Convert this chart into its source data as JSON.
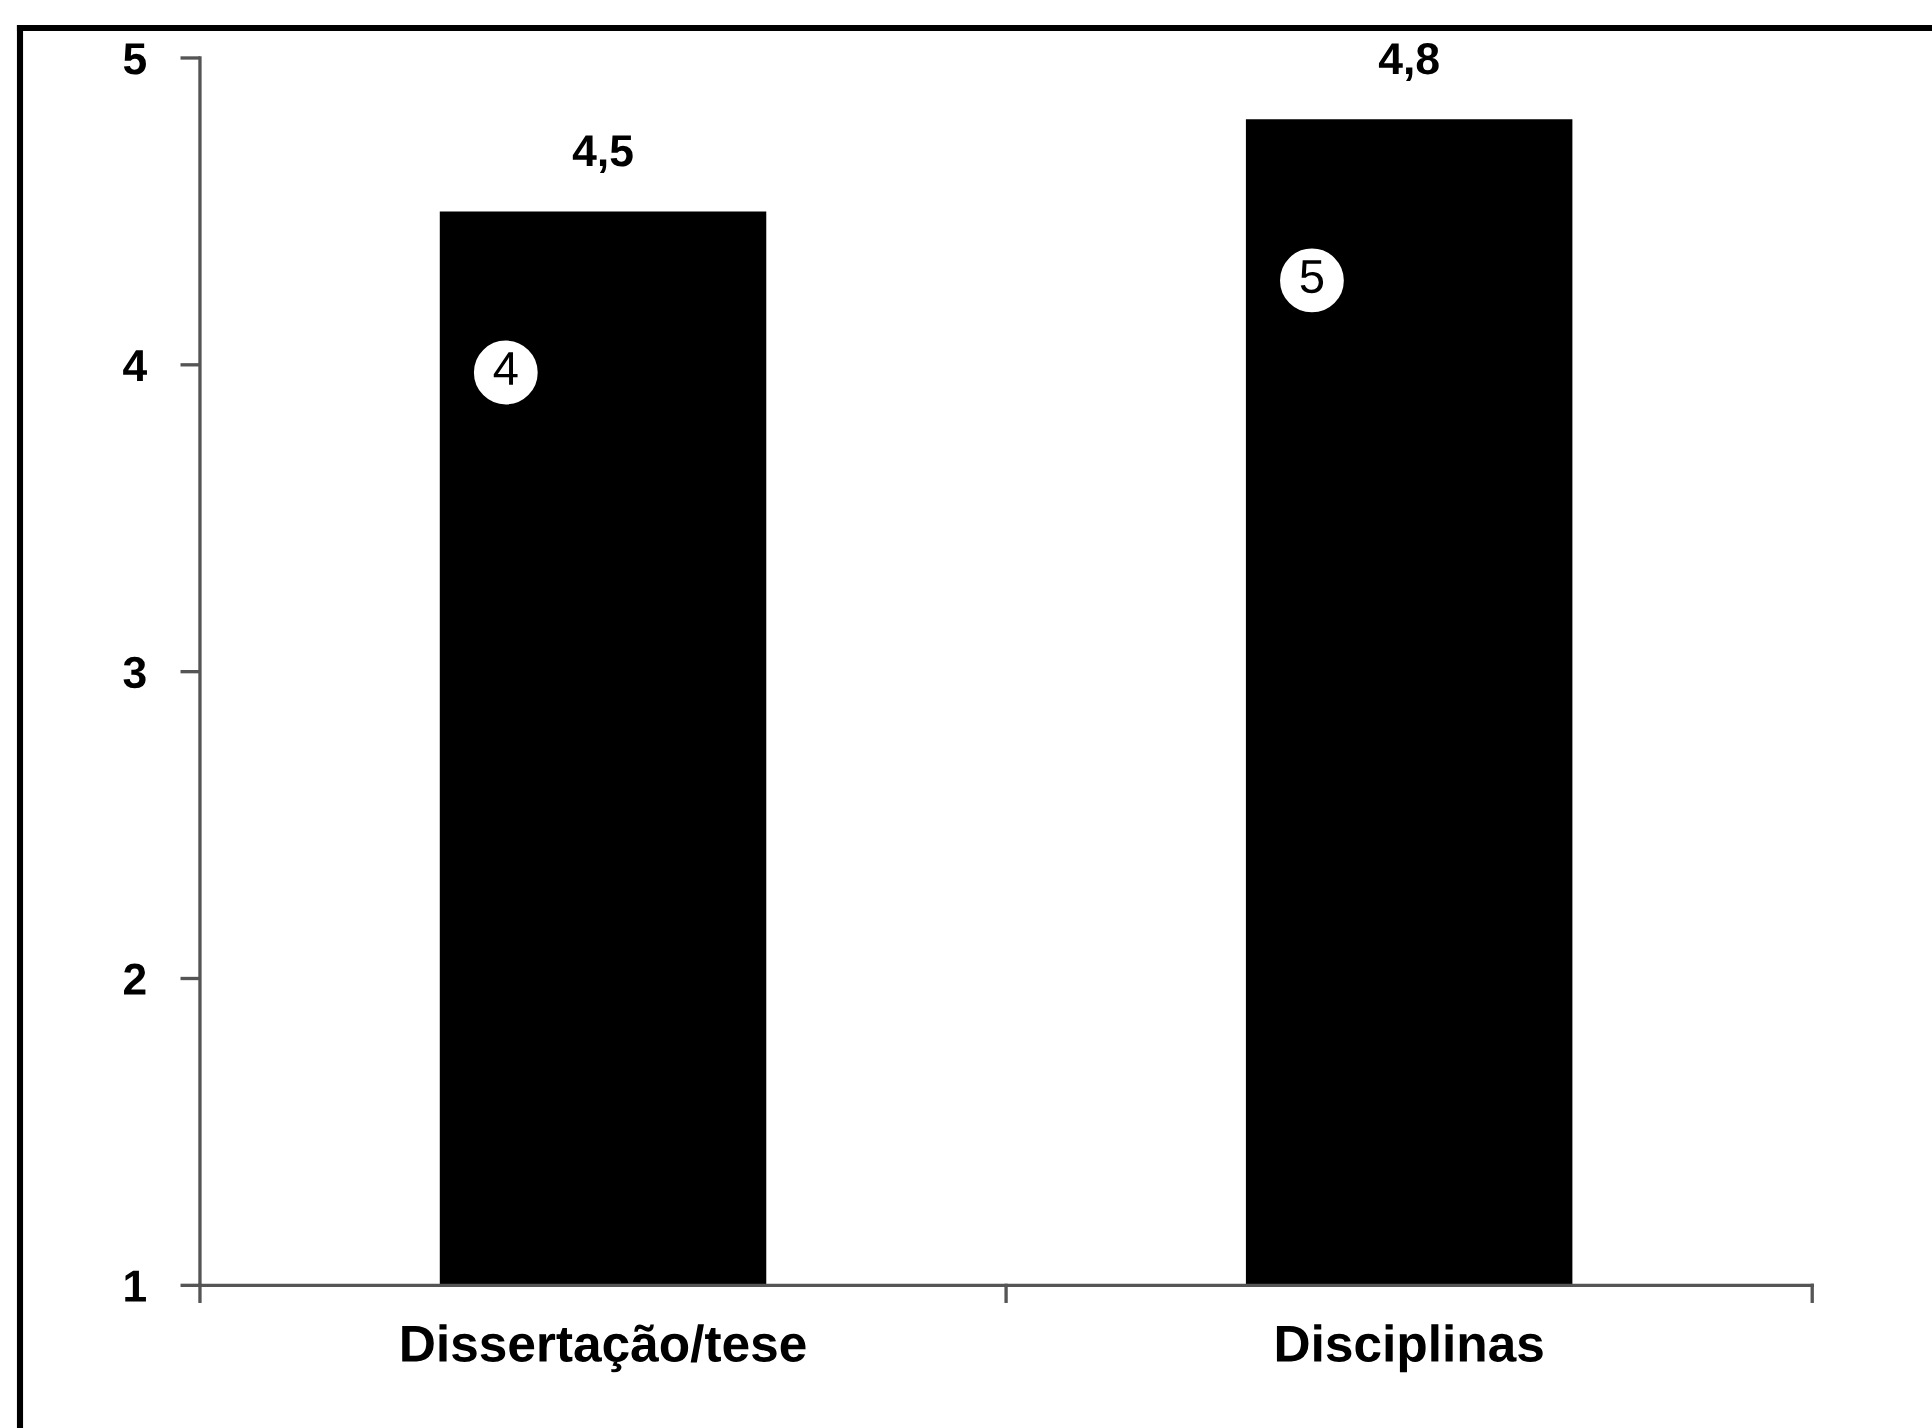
{
  "chart_data": {
    "type": "bar",
    "categories": [
      "Dissertação/tese",
      "Disciplinas"
    ],
    "values": [
      4.5,
      4.8
    ],
    "color": "#000000",
    "value_labels": [
      "4,5",
      "4,8"
    ],
    "ylim": [
      1,
      5
    ],
    "yticks": [
      1,
      2,
      3,
      4,
      5
    ],
    "annotations": [
      "4",
      "5"
    ]
  }
}
